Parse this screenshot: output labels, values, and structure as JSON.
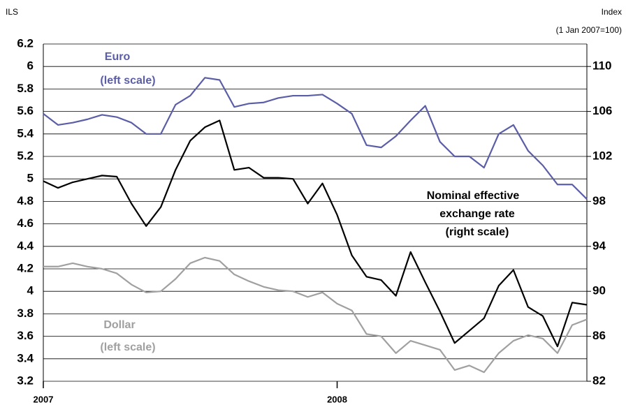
{
  "chart_data": {
    "type": "line",
    "y_label": "ILS",
    "y2_label": "Index",
    "y2_label_note": "(1 Jan 2007=100)",
    "annotations": [
      "Euro",
      "(left scale)",
      "Nominal effective",
      "exchange rate",
      "(right scale)",
      "Dollar",
      "(left scale)"
    ],
    "x": [
      2007.0,
      2007.05,
      2007.1,
      2007.15,
      2007.2,
      2007.25,
      2007.3,
      2007.35,
      2007.4,
      2007.45,
      2007.5,
      2007.55,
      2007.6,
      2007.65,
      2007.7,
      2007.75,
      2007.8,
      2007.85,
      2007.9,
      2007.95,
      2008.0,
      2008.05,
      2008.1,
      2008.15,
      2008.2,
      2008.25,
      2008.3,
      2008.35,
      2008.4,
      2008.45,
      2008.5,
      2008.55,
      2008.6,
      2008.65,
      2008.7,
      2008.75,
      2008.8,
      2008.85
    ],
    "xlim": [
      2007.0,
      2008.85
    ],
    "xticks": [
      2007,
      2008
    ],
    "ylim": [
      3.2,
      6.2
    ],
    "yticks": [
      3.2,
      3.4,
      3.6,
      3.8,
      4,
      4.2,
      4.4,
      4.6,
      4.8,
      5,
      5.2,
      5.4,
      5.6,
      5.8,
      6,
      6.2
    ],
    "y2lim": [
      82,
      112
    ],
    "y2ticks": [
      82,
      86,
      90,
      94,
      98,
      102,
      106,
      110
    ],
    "grid": true,
    "series": [
      {
        "name": "Euro",
        "color": "#5b5ea6",
        "values": [
          5.58,
          5.48,
          5.5,
          5.53,
          5.57,
          5.55,
          5.5,
          5.4,
          5.4,
          5.66,
          5.74,
          5.9,
          5.88,
          5.64,
          5.67,
          5.68,
          5.72,
          5.74,
          5.74,
          5.75,
          5.67,
          5.58,
          5.3,
          5.28,
          5.38,
          5.52,
          5.65,
          5.33,
          5.2,
          5.2,
          5.1,
          5.4,
          5.48,
          5.25,
          5.12,
          4.95,
          4.95,
          4.82
        ]
      },
      {
        "name": "Nominal effective exchange rate",
        "color": "#000000",
        "axis": "y2",
        "values": [
          99.8,
          99.2,
          99.7,
          100,
          100.3,
          100.2,
          97.8,
          95.8,
          97.5,
          100.8,
          103.4,
          104.6,
          105.2,
          100.8,
          101,
          100.1,
          100.1,
          100,
          97.8,
          99.6,
          96.8,
          93.2,
          91.3,
          91,
          89.6,
          93.5,
          90.8,
          88.2,
          85.4,
          86.5,
          87.6,
          90.5,
          91.9,
          88.6,
          87.8,
          85.1,
          89,
          88.8
        ]
      },
      {
        "name": "Dollar",
        "color": "#a0a0a0",
        "values": [
          4.22,
          4.22,
          4.25,
          4.22,
          4.2,
          4.16,
          4.06,
          3.99,
          4.0,
          4.11,
          4.25,
          4.3,
          4.27,
          4.15,
          4.09,
          4.04,
          4.01,
          4.0,
          3.95,
          3.99,
          3.89,
          3.83,
          3.62,
          3.6,
          3.45,
          3.56,
          3.52,
          3.48,
          3.3,
          3.34,
          3.28,
          3.45,
          3.56,
          3.61,
          3.58,
          3.45,
          3.7,
          3.75
        ]
      }
    ]
  }
}
